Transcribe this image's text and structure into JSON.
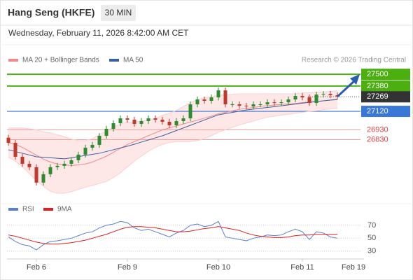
{
  "chart_data": {
    "type": "candlestick",
    "title": "Hang Seng (HKFE)",
    "timeframe": "30 MIN",
    "subtitle": "Wednesday, February 11, 2026 8:42:00 AM CET",
    "credit": "Research © 2026 Trading Central",
    "legend": [
      {
        "name": "MA 20 + Bollinger Bands",
        "color": "#f08a8a"
      },
      {
        "name": "MA 50",
        "color": "#3a5fa0"
      }
    ],
    "categories": [
      null,
      null,
      null,
      null,
      "Feb 6",
      null,
      null,
      null,
      null,
      null,
      null,
      null,
      null,
      null,
      null,
      null,
      null,
      "Feb 9",
      null,
      null,
      null,
      null,
      null,
      null,
      null,
      null,
      null,
      null,
      null,
      null,
      "Feb 10",
      null,
      null,
      null,
      null,
      null,
      null,
      null,
      null,
      null,
      null,
      null,
      "Feb 11",
      null,
      null,
      null,
      null,
      null
    ],
    "future_label": "Feb 19",
    "ylim": [
      26230,
      27580
    ],
    "up_color": "#2e8b2e",
    "down_color": "#c0392b",
    "open": [
      26850,
      26797,
      26654,
      26582,
      26547,
      26389,
      26475,
      26547,
      26561,
      26582,
      26618,
      26676,
      26747,
      26776,
      26869,
      26941,
      26998,
      27048,
      27034,
      26991,
      27020,
      27048,
      27034,
      27013,
      26977,
      27020,
      27048,
      27192,
      27242,
      27228,
      27263,
      27335,
      27192,
      27192,
      27177,
      27170,
      27192,
      27192,
      27213,
      27206,
      27213,
      27242,
      27278,
      27263,
      27206,
      27292,
      27299,
      27285
    ],
    "high": [
      26880,
      26827,
      26684,
      26612,
      26577,
      26505,
      26577,
      26591,
      26612,
      26648,
      26706,
      26777,
      26806,
      26899,
      26971,
      27028,
      27078,
      27078,
      27064,
      27050,
      27078,
      27078,
      27064,
      27043,
      27050,
      27078,
      27222,
      27272,
      27272,
      27293,
      27365,
      27365,
      27222,
      27222,
      27207,
      27222,
      27222,
      27243,
      27243,
      27243,
      27272,
      27308,
      27308,
      27293,
      27322,
      27329,
      27329,
      27315
    ],
    "low": [
      26767,
      26624,
      26552,
      26517,
      26359,
      26359,
      26445,
      26517,
      26531,
      26552,
      26588,
      26646,
      26717,
      26746,
      26839,
      26911,
      26968,
      27004,
      26961,
      26961,
      26990,
      27004,
      26983,
      26947,
      26947,
      26990,
      27018,
      27162,
      27198,
      27198,
      27233,
      27162,
      27162,
      27147,
      27140,
      27140,
      27162,
      27162,
      27176,
      27176,
      27183,
      27212,
      27233,
      27176,
      27176,
      27262,
      27255,
      27241
    ],
    "close": [
      26797,
      26654,
      26582,
      26547,
      26389,
      26475,
      26547,
      26561,
      26582,
      26618,
      26676,
      26747,
      26776,
      26869,
      26941,
      26998,
      27048,
      27034,
      26991,
      27020,
      27048,
      27034,
      27013,
      26977,
      27020,
      27048,
      27192,
      27242,
      27228,
      27263,
      27335,
      27192,
      27192,
      27177,
      27170,
      27192,
      27192,
      27213,
      27206,
      27213,
      27242,
      27278,
      27263,
      27206,
      27292,
      27299,
      27285,
      27271
    ],
    "ma20": [
      26800,
      26780,
      26750,
      26710,
      26670,
      26630,
      26600,
      26580,
      26570,
      26565,
      26570,
      26580,
      26600,
      26630,
      26660,
      26700,
      26740,
      26780,
      26810,
      26840,
      26870,
      26900,
      26930,
      26950,
      26970,
      26990,
      27010,
      27030,
      27050,
      27070,
      27095,
      27110,
      27125,
      27140,
      27150,
      27160,
      27170,
      27180,
      27185,
      27190,
      27195,
      27200,
      27210,
      27215,
      27220,
      27228,
      27235,
      27240
    ],
    "bollinger_upper": [
      26950,
      26950,
      26950,
      26940,
      26930,
      26910,
      26900,
      26880,
      26860,
      26835,
      26820,
      26820,
      26840,
      26880,
      26920,
      26960,
      26990,
      27010,
      27010,
      27020,
      27030,
      27050,
      27080,
      27100,
      27130,
      27170,
      27210,
      27240,
      27260,
      27270,
      27285,
      27290,
      27295,
      27300,
      27300,
      27300,
      27300,
      27300,
      27300,
      27300,
      27300,
      27300,
      27310,
      27310,
      27315,
      27318,
      27325,
      27330
    ],
    "bollinger_lower": [
      26650,
      26610,
      26550,
      26480,
      26410,
      26350,
      26300,
      26280,
      26280,
      26295,
      26320,
      26340,
      26360,
      26380,
      26400,
      26440,
      26490,
      26550,
      26610,
      26660,
      26710,
      26750,
      26780,
      26800,
      26810,
      26810,
      26810,
      26820,
      26840,
      26870,
      26905,
      26930,
      26955,
      26980,
      27000,
      27020,
      27040,
      27060,
      27070,
      27080,
      27090,
      27100,
      27110,
      27120,
      27125,
      27138,
      27145,
      27150
    ],
    "ma50": [
      26726,
      26708,
      26690,
      26672,
      26654,
      26649,
      26644,
      26638,
      26633,
      26644,
      26656,
      26667,
      26679,
      26690,
      26708,
      26726,
      26744,
      26762,
      26783,
      26805,
      26826,
      26848,
      26869,
      26896,
      26923,
      26950,
      26977,
      27004,
      27031,
      27058,
      27084,
      27097,
      27109,
      27122,
      27134,
      27143,
      27151,
      27160,
      27168,
      27177,
      27186,
      27195,
      27204,
      27213,
      27220,
      27228,
      27235,
      27242
    ],
    "levels": [
      {
        "value": 27500,
        "color": "#4caf10",
        "style": "box"
      },
      {
        "value": 27380,
        "color": "#4caf10",
        "style": "box"
      },
      {
        "value": 27269,
        "color": "#333333",
        "style": "current"
      },
      {
        "value": 27120,
        "color": "#3a78d8",
        "style": "box"
      },
      {
        "value": 26930,
        "color": "#e04040",
        "style": "text"
      },
      {
        "value": 26830,
        "color": "#e04040",
        "style": "text"
      }
    ],
    "rsi": {
      "ylim": [
        20,
        85
      ],
      "yticks": [
        30,
        50,
        70
      ],
      "series": [
        {
          "name": "RSI",
          "color": "#5b7fd6",
          "values": [
            52,
            45,
            40,
            38,
            32,
            40,
            45,
            46,
            48,
            50,
            54,
            58,
            60,
            66,
            70,
            72,
            76,
            74,
            66,
            62,
            64,
            60,
            56,
            52,
            58,
            62,
            70,
            72,
            68,
            70,
            76,
            52,
            50,
            48,
            46,
            50,
            52,
            55,
            54,
            55,
            60,
            64,
            60,
            48,
            60,
            58,
            52,
            50
          ]
        },
        {
          "name": "9MA",
          "color": "#e02020",
          "values": [
            55,
            53,
            50,
            47,
            44,
            42,
            41,
            41,
            42,
            43,
            45,
            47,
            50,
            53,
            56,
            60,
            64,
            67,
            68,
            68,
            67,
            66,
            64,
            62,
            60,
            60,
            61,
            63,
            65,
            66,
            68,
            66,
            64,
            62,
            58,
            55,
            53,
            52,
            51,
            51,
            52,
            54,
            55,
            55,
            56,
            56,
            56,
            56
          ]
        }
      ]
    }
  }
}
